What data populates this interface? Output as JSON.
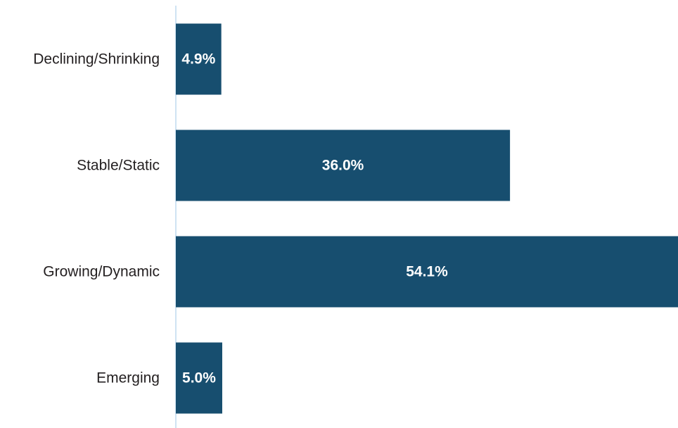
{
  "chart_data": {
    "type": "bar",
    "orientation": "horizontal",
    "categories": [
      "Declining/Shrinking",
      "Stable/Static",
      "Growing/Dynamic",
      "Emerging"
    ],
    "values": [
      4.9,
      36.0,
      54.1,
      5.0
    ],
    "value_labels": [
      "4.9%",
      "36.0%",
      "54.1%",
      "5.0%"
    ],
    "xlim": [
      0,
      54.1
    ],
    "grid": false,
    "legend": "none",
    "colors": {
      "bar": "#174e6f",
      "axis": "#cfe3f3",
      "label": "#231f20",
      "value_label": "#ffffff"
    }
  }
}
